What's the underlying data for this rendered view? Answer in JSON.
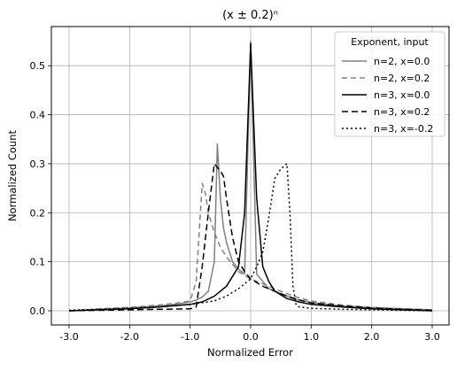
{
  "chart_data": {
    "type": "line",
    "title": "(x ± 0.2)ⁿ",
    "xlabel": "Normalized Error",
    "ylabel": "Normalized Count",
    "xlim": [
      -3.0,
      3.0
    ],
    "ylim": [
      0.0,
      0.55
    ],
    "xticks": [
      -3.0,
      -2.0,
      -1.0,
      0.0,
      1.0,
      2.0,
      3.0
    ],
    "xtick_labels": [
      "-3.0",
      "-2.0",
      "-1.0",
      "0.0",
      "1.0",
      "2.0",
      "3.0"
    ],
    "yticks": [
      0.0,
      0.1,
      0.2,
      0.3,
      0.4,
      0.5
    ],
    "ytick_labels": [
      "0.0",
      "0.1",
      "0.2",
      "0.3",
      "0.4",
      "0.5"
    ],
    "grid": true,
    "legend_title": "Exponent, input",
    "legend_position": "top-right",
    "series": [
      {
        "name": "n=2, x=0.0",
        "color": "#808080",
        "dash": "solid",
        "x": [
          -3.0,
          -2.5,
          -2.0,
          -1.5,
          -1.2,
          -1.0,
          -0.9,
          -0.8,
          -0.7,
          -0.6,
          -0.55,
          -0.5,
          -0.45,
          -0.4,
          -0.3,
          -0.2,
          -0.1,
          0.0,
          0.1,
          0.2,
          0.3,
          0.5,
          0.7,
          1.0,
          1.5,
          2.0,
          2.5,
          3.0
        ],
        "y": [
          0.0,
          0.003,
          0.006,
          0.01,
          0.014,
          0.018,
          0.022,
          0.028,
          0.04,
          0.1,
          0.34,
          0.23,
          0.17,
          0.14,
          0.1,
          0.085,
          0.075,
          0.55,
          0.075,
          0.06,
          0.045,
          0.035,
          0.025,
          0.017,
          0.01,
          0.006,
          0.004,
          0.002
        ]
      },
      {
        "name": "n=2, x=0.2",
        "color": "#808080",
        "dash": "6,4",
        "x": [
          -3.0,
          -2.5,
          -2.0,
          -1.5,
          -1.2,
          -1.0,
          -0.9,
          -0.8,
          -0.75,
          -0.7,
          -0.6,
          -0.5,
          -0.4,
          -0.3,
          -0.2,
          -0.1,
          0.0,
          0.1,
          0.2,
          0.3,
          0.5,
          0.7,
          1.0,
          1.5,
          2.0,
          2.5,
          3.0
        ],
        "y": [
          0.0,
          0.004,
          0.007,
          0.012,
          0.016,
          0.02,
          0.06,
          0.26,
          0.24,
          0.2,
          0.16,
          0.13,
          0.11,
          0.095,
          0.08,
          0.072,
          0.065,
          0.06,
          0.055,
          0.05,
          0.04,
          0.03,
          0.02,
          0.012,
          0.007,
          0.004,
          0.002
        ]
      },
      {
        "name": "n=3, x=0.0",
        "color": "#000000",
        "dash": "solid",
        "x": [
          -3.0,
          -2.5,
          -2.0,
          -1.5,
          -1.0,
          -0.8,
          -0.6,
          -0.4,
          -0.2,
          -0.1,
          0.0,
          0.1,
          0.2,
          0.3,
          0.4,
          0.6,
          0.8,
          1.0,
          1.5,
          2.0,
          2.5,
          3.0
        ],
        "y": [
          0.0,
          0.002,
          0.004,
          0.008,
          0.013,
          0.018,
          0.03,
          0.05,
          0.09,
          0.2,
          0.545,
          0.23,
          0.09,
          0.06,
          0.04,
          0.025,
          0.018,
          0.013,
          0.008,
          0.004,
          0.002,
          0.0
        ]
      },
      {
        "name": "n=3, x=0.2",
        "color": "#000000",
        "dash": "7,4",
        "x": [
          -3.0,
          -2.5,
          -2.0,
          -1.5,
          -1.0,
          -0.9,
          -0.8,
          -0.7,
          -0.6,
          -0.5,
          -0.45,
          -0.4,
          -0.3,
          -0.2,
          -0.1,
          0.0,
          0.2,
          0.4,
          0.6,
          0.8,
          1.0,
          1.5,
          2.0,
          2.5,
          3.0
        ],
        "y": [
          0.0,
          0.001,
          0.002,
          0.003,
          0.004,
          0.008,
          0.09,
          0.2,
          0.3,
          0.285,
          0.275,
          0.23,
          0.15,
          0.1,
          0.08,
          0.065,
          0.05,
          0.04,
          0.03,
          0.022,
          0.016,
          0.01,
          0.006,
          0.003,
          0.001
        ]
      },
      {
        "name": "n=3, x=-0.2",
        "color": "#000000",
        "dash": "2,3",
        "x": [
          -3.0,
          -2.5,
          -2.0,
          -1.5,
          -1.0,
          -0.6,
          -0.4,
          -0.2,
          0.0,
          0.1,
          0.2,
          0.3,
          0.4,
          0.5,
          0.6,
          0.65,
          0.7,
          0.75,
          0.8,
          1.0,
          1.5,
          2.0,
          2.5,
          3.0
        ],
        "y": [
          0.001,
          0.003,
          0.005,
          0.008,
          0.013,
          0.02,
          0.03,
          0.045,
          0.065,
          0.09,
          0.12,
          0.19,
          0.27,
          0.29,
          0.3,
          0.2,
          0.05,
          0.012,
          0.008,
          0.005,
          0.003,
          0.002,
          0.001,
          0.0
        ]
      }
    ]
  }
}
